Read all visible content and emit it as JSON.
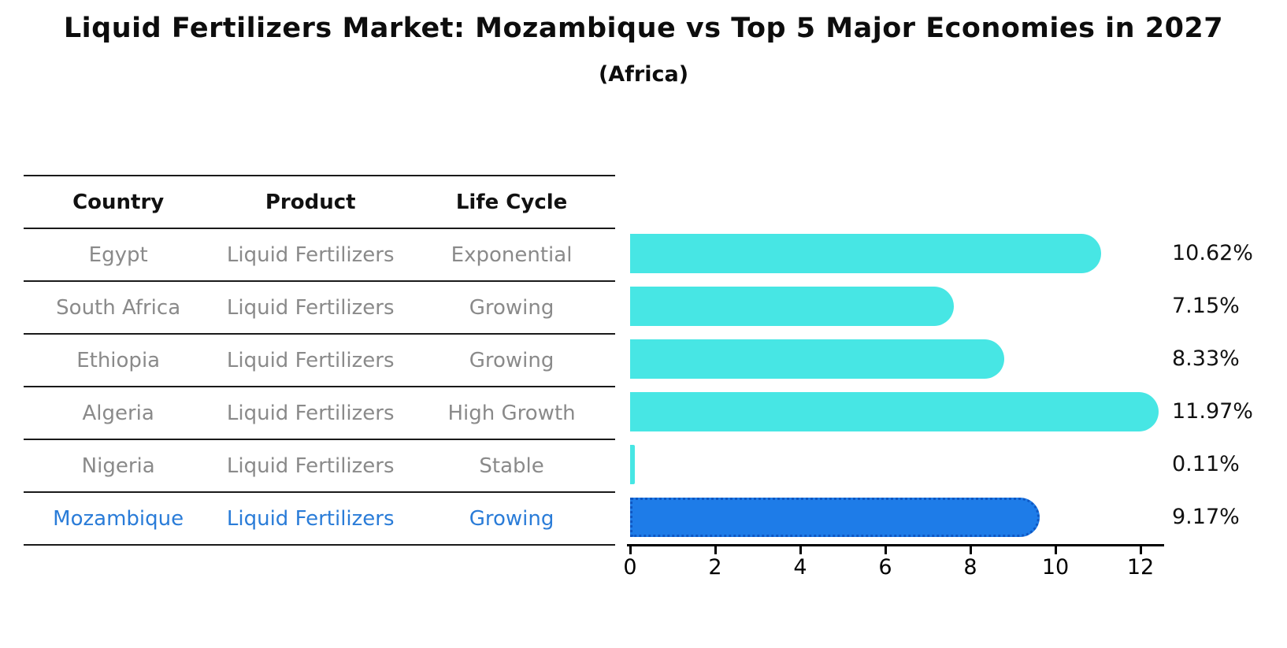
{
  "title": "Liquid Fertilizers Market: Mozambique vs Top 5 Major Economies in 2027",
  "subtitle": "(Africa)",
  "table": {
    "headers": [
      "Country",
      "Product",
      "Life Cycle"
    ],
    "rows": [
      {
        "country": "Egypt",
        "product": "Liquid Fertilizers",
        "life_cycle": "Exponential",
        "highlight": false
      },
      {
        "country": "South Africa",
        "product": "Liquid Fertilizers",
        "life_cycle": "Growing",
        "highlight": false
      },
      {
        "country": "Ethiopia",
        "product": "Liquid Fertilizers",
        "life_cycle": "Growing",
        "highlight": false
      },
      {
        "country": "Algeria",
        "product": "Liquid Fertilizers",
        "life_cycle": "High Growth",
        "highlight": false
      },
      {
        "country": "Nigeria",
        "product": "Liquid Fertilizers",
        "life_cycle": "Stable",
        "highlight": false
      },
      {
        "country": "Mozambique",
        "product": "Liquid Fertilizers",
        "life_cycle": "Growing",
        "highlight": true
      }
    ]
  },
  "chart_data": {
    "type": "bar",
    "orientation": "horizontal",
    "categories": [
      "Egypt",
      "South Africa",
      "Ethiopia",
      "Algeria",
      "Nigeria",
      "Mozambique"
    ],
    "values": [
      10.62,
      7.15,
      8.33,
      11.97,
      0.11,
      9.17
    ],
    "value_labels": [
      "10.62%",
      "7.15%",
      "8.33%",
      "11.97%",
      "0.11%",
      "9.17%"
    ],
    "highlight_index": 5,
    "xticks": [
      0,
      2,
      4,
      6,
      8,
      10,
      12
    ],
    "xlim": [
      0,
      12.6
    ],
    "grid": false,
    "legend": "none",
    "title": "Liquid Fertilizers Market: Mozambique vs Top 5 Major Economies in 2027 (Africa)",
    "xlabel": "",
    "ylabel": ""
  },
  "colors": {
    "bar": "#47e6e4",
    "highlight_bar": "#1e7ce8",
    "highlight_border": "#0f57c2",
    "highlight_text": "#2a7cd8",
    "row_text": "#8a8a8a",
    "header_text": "#111111",
    "axis": "#000000"
  }
}
